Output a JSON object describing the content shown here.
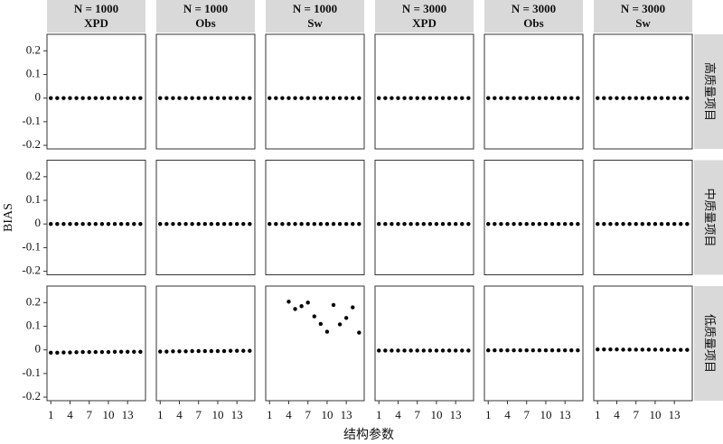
{
  "chart_data": {
    "type": "scatter",
    "xlabel": "结构参数",
    "ylabel": "BIAS",
    "columns": [
      {
        "n": "N = 1000",
        "method": "XPD"
      },
      {
        "n": "N = 1000",
        "method": "Obs"
      },
      {
        "n": "N = 1000",
        "method": "Sw"
      },
      {
        "n": "N = 3000",
        "method": "XPD"
      },
      {
        "n": "N = 3000",
        "method": "Obs"
      },
      {
        "n": "N = 3000",
        "method": "Sw"
      }
    ],
    "rows": [
      "高质量项目",
      "中质量项目",
      "低质量项目"
    ],
    "x": [
      1,
      2,
      3,
      4,
      5,
      6,
      7,
      8,
      9,
      10,
      11,
      12,
      13,
      14,
      15
    ],
    "xlim": [
      0.4,
      15.8
    ],
    "xticks": [
      1,
      4,
      7,
      10,
      13
    ],
    "ylim": [
      -0.215,
      0.27
    ],
    "yticks": [
      0.2,
      0.1,
      0,
      -0.1,
      -0.2
    ],
    "color": "#000000",
    "panels": [
      [
        {
          "values": [
            0,
            0,
            0,
            0,
            0,
            0,
            0,
            0,
            0,
            0,
            0,
            0,
            0,
            0,
            0
          ]
        },
        {
          "values": [
            0,
            0,
            0,
            0,
            0,
            0,
            0,
            0,
            0,
            0,
            0,
            0,
            0,
            0,
            0
          ]
        },
        {
          "values": [
            0,
            0,
            0,
            0,
            0,
            0,
            0,
            0,
            0,
            0,
            0,
            0,
            0,
            0,
            0
          ]
        },
        {
          "values": [
            0,
            0,
            0,
            0,
            0,
            0,
            0,
            0,
            0,
            0,
            0,
            0,
            0,
            0,
            0
          ]
        },
        {
          "values": [
            0,
            0,
            0,
            0,
            0,
            0,
            0,
            0,
            0,
            0,
            0,
            0,
            0,
            0,
            0
          ]
        },
        {
          "values": [
            0,
            0,
            0,
            0,
            0,
            0,
            0,
            0,
            0,
            0,
            0,
            0,
            0,
            0,
            0
          ]
        }
      ],
      [
        {
          "values": [
            0,
            0,
            0,
            0,
            0,
            0,
            0,
            0,
            0,
            0,
            0,
            0,
            0,
            0,
            0
          ]
        },
        {
          "values": [
            0,
            0,
            0,
            0,
            0,
            0,
            0,
            0,
            0,
            0,
            0,
            0,
            0,
            0,
            0
          ]
        },
        {
          "values": [
            0,
            0,
            0,
            0,
            0,
            0,
            0,
            0,
            0,
            0,
            0,
            0,
            0,
            0,
            0
          ]
        },
        {
          "values": [
            0,
            0,
            0,
            0,
            0,
            0,
            0,
            0,
            0,
            0,
            0,
            0,
            0,
            0,
            0
          ]
        },
        {
          "values": [
            0,
            0,
            0,
            0,
            0,
            0,
            0,
            0,
            0,
            0,
            0,
            0,
            0,
            0,
            0
          ]
        },
        {
          "values": [
            0,
            0,
            0,
            0,
            0,
            0,
            0,
            0,
            0,
            0,
            0,
            0,
            0,
            0,
            0
          ]
        }
      ],
      [
        {
          "values": [
            -0.012,
            -0.012,
            -0.011,
            -0.011,
            -0.01,
            -0.009,
            -0.009,
            -0.009,
            -0.009,
            -0.009,
            -0.008,
            -0.008,
            -0.008,
            -0.008,
            -0.008
          ]
        },
        {
          "values": [
            -0.007,
            -0.007,
            -0.006,
            -0.006,
            -0.006,
            -0.005,
            -0.005,
            -0.005,
            -0.005,
            -0.005,
            -0.005,
            -0.004,
            -0.004,
            -0.004,
            -0.004
          ]
        },
        {
          "values": [
            null,
            null,
            null,
            0.204,
            0.173,
            0.185,
            0.2,
            0.142,
            0.11,
            0.077,
            0.19,
            0.108,
            0.135,
            0.18,
            0.073
          ]
        },
        {
          "values": [
            -0.003,
            -0.003,
            -0.003,
            -0.003,
            -0.003,
            -0.003,
            -0.003,
            -0.003,
            -0.003,
            -0.003,
            -0.003,
            -0.003,
            -0.003,
            -0.003,
            -0.003
          ]
        },
        {
          "values": [
            -0.002,
            -0.002,
            -0.002,
            -0.002,
            -0.002,
            -0.002,
            -0.002,
            -0.002,
            -0.002,
            -0.002,
            -0.002,
            -0.002,
            -0.002,
            -0.002,
            -0.002
          ]
        },
        {
          "values": [
            0.002,
            0.002,
            0.002,
            0.002,
            0.001,
            0.001,
            0.001,
            0.001,
            0.001,
            0.001,
            0.001,
            0,
            0,
            0,
            0
          ]
        }
      ]
    ]
  }
}
